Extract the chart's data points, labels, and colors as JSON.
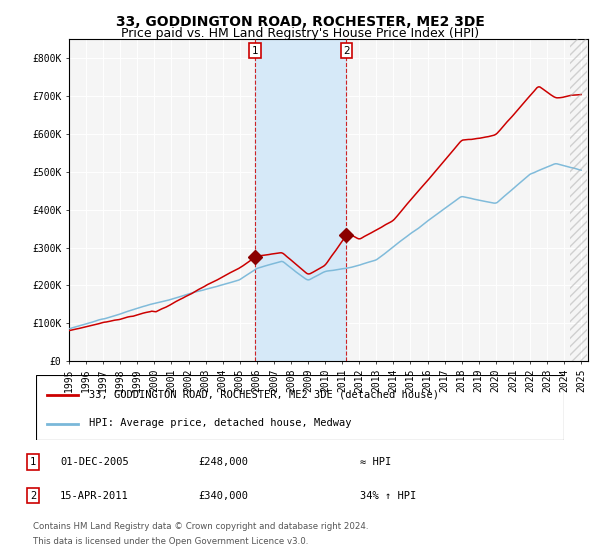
{
  "title": "33, GODDINGTON ROAD, ROCHESTER, ME2 3DE",
  "subtitle": "Price paid vs. HM Land Registry's House Price Index (HPI)",
  "ylim": [
    0,
    850000
  ],
  "yticks": [
    0,
    100000,
    200000,
    300000,
    400000,
    500000,
    600000,
    700000,
    800000
  ],
  "ytick_labels": [
    "£0",
    "£100K",
    "£200K",
    "£300K",
    "£400K",
    "£500K",
    "£600K",
    "£700K",
    "£800K"
  ],
  "hpi_color": "#7ab8d9",
  "price_color": "#cc0000",
  "marker_color": "#8b0000",
  "bg_color": "#f5f5f5",
  "shading_color": "#d6e9f8",
  "legend_label_price": "33, GODDINGTON ROAD, ROCHESTER, ME2 3DE (detached house)",
  "legend_label_hpi": "HPI: Average price, detached house, Medway",
  "sale1_date": "01-DEC-2005",
  "sale1_price": 248000,
  "sale1_label": "≈ HPI",
  "sale2_date": "15-APR-2011",
  "sale2_price": 340000,
  "sale2_label": "34% ↑ HPI",
  "footnote1": "Contains HM Land Registry data © Crown copyright and database right 2024.",
  "footnote2": "This data is licensed under the Open Government Licence v3.0.",
  "title_fontsize": 10,
  "subtitle_fontsize": 9,
  "tick_fontsize": 7,
  "legend_fontsize": 7.5,
  "annot_fontsize": 7.5
}
